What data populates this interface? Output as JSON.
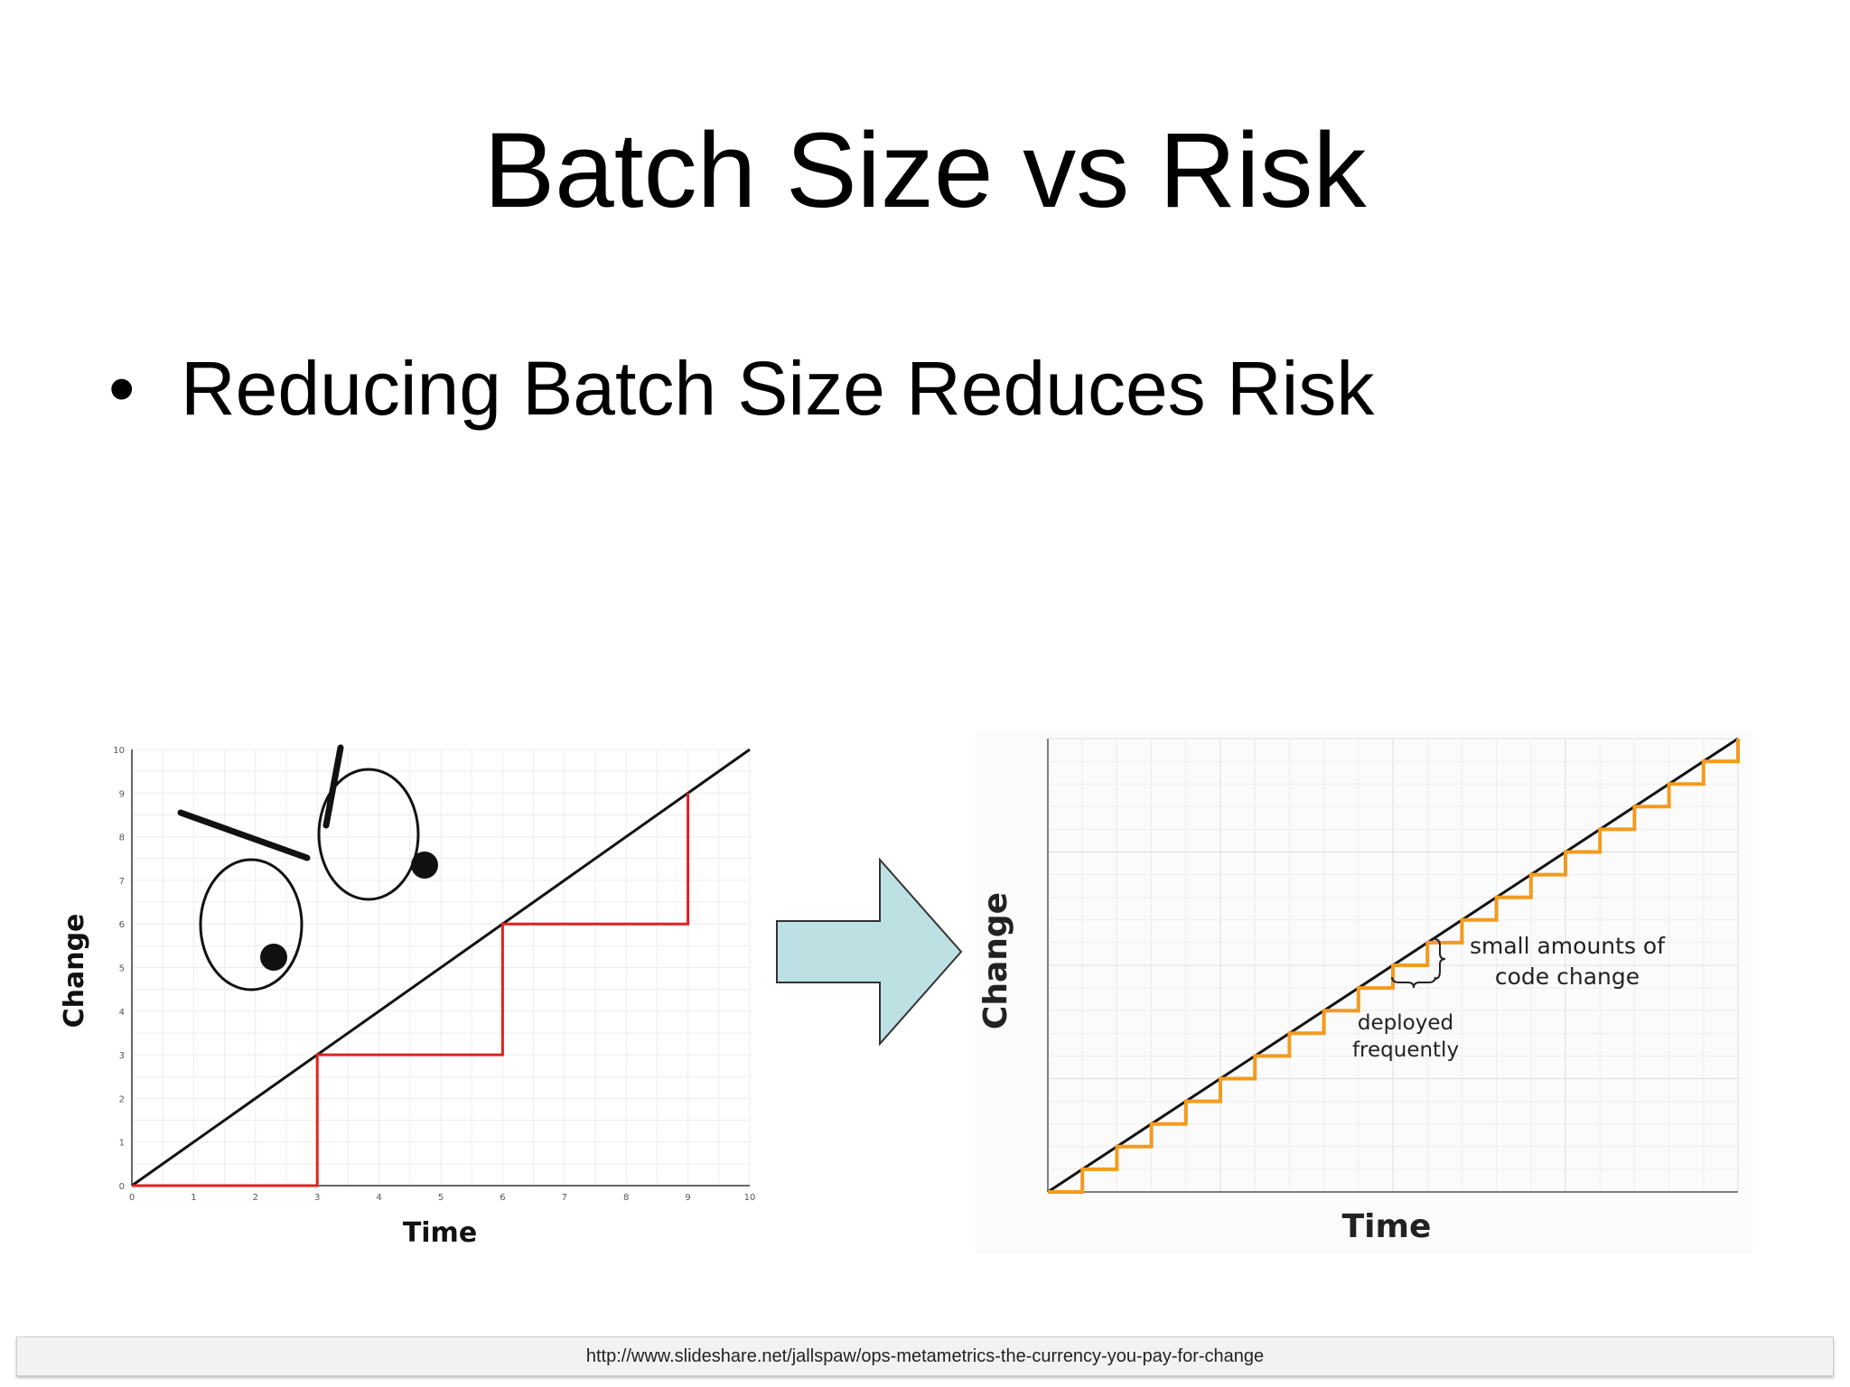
{
  "slide": {
    "title": "Batch Size vs Risk",
    "bullet_symbol": "•",
    "bullet_text": "Reducing Batch Size Reduces Risk",
    "footer_url": "http://www.slideshare.net/jallspaw/ops-metametrics-the-currency-you-pay-for-change"
  },
  "icons": {
    "arrow": "right-arrow-icon",
    "face": "grumpy-face-doodle"
  },
  "colors": {
    "accent_red": "#e02020",
    "accent_orange": "#f39a1e",
    "arrow_fill": "#bde0e3",
    "line_black": "#111111"
  },
  "chart_data": [
    {
      "type": "line",
      "xlabel": "Time",
      "ylabel": "Change",
      "xlim": [
        0,
        10
      ],
      "ylim": [
        0,
        10
      ],
      "x_ticks": [
        "0",
        "1",
        "2",
        "3",
        "4",
        "5",
        "6",
        "7",
        "8",
        "9",
        "10"
      ],
      "y_ticks": [
        "0",
        "1",
        "2",
        "3",
        "4",
        "5",
        "6",
        "7",
        "8",
        "9",
        "10"
      ],
      "grid": true,
      "series": [
        {
          "values_x": [
            0,
            10
          ],
          "values_y": [
            0,
            10
          ]
        },
        {
          "step": true,
          "values_x": [
            0,
            3,
            3,
            6,
            6,
            9,
            9
          ],
          "values_y": [
            0,
            0,
            3,
            3,
            6,
            6,
            9
          ]
        }
      ]
    },
    {
      "type": "line",
      "xlabel": "Time",
      "ylabel": "Change",
      "xlim": [
        0,
        20
      ],
      "ylim": [
        0,
        20
      ],
      "grid": true,
      "annotations": [
        "small amounts of",
        "code change",
        "deployed",
        "frequently"
      ],
      "series": [
        {
          "values_x": [
            0,
            20
          ],
          "values_y": [
            0,
            20
          ]
        },
        {
          "step": true,
          "step_size": 1,
          "count": 20
        }
      ]
    }
  ]
}
